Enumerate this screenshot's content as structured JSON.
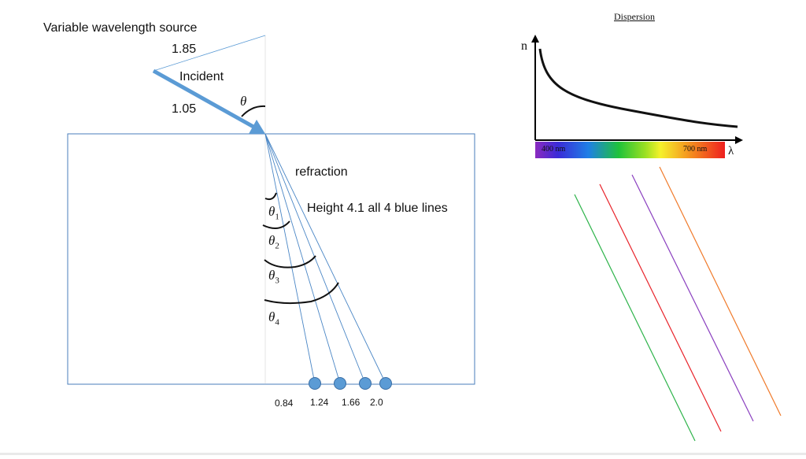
{
  "labels": {
    "source": "Variable wavelength source",
    "incident": "Incident",
    "refraction": "refraction",
    "height": "Height 4.1 all 4 blue lines",
    "top_len": "1.85",
    "side_len": "1.05",
    "theta": "θ",
    "theta_subs": [
      "1",
      "2",
      "3",
      "4"
    ],
    "positions": [
      "0.84",
      "1.24",
      "1.66",
      "2.0"
    ]
  },
  "dispersion": {
    "title": "Dispersion",
    "n_axis": "n",
    "lambda_axis": "λ",
    "nm400": "400 nm",
    "nm700": "700 nm"
  },
  "colors": {
    "beam": "#5b9bd5",
    "thin_line": "#4a86c5",
    "box": "#4a7ebb",
    "dot": "#5b9bd5",
    "green_line": "#2db34a",
    "red_line": "#e8232a",
    "purple_line": "#8a3fbf",
    "orange_line": "#f07a2a"
  }
}
